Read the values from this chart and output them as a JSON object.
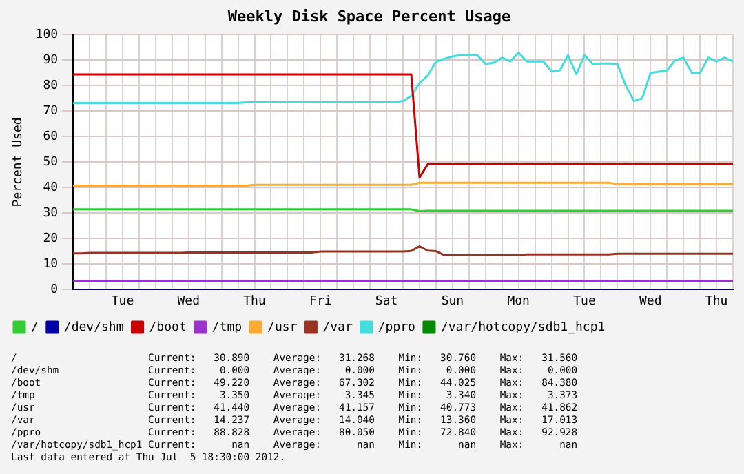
{
  "chart_data": {
    "type": "line",
    "title": "Weekly Disk Space Percent Usage",
    "ylabel": "Percent Used",
    "categories": [
      null,
      null,
      null,
      null,
      null,
      null,
      "Tue",
      null,
      null,
      null,
      null,
      null,
      null,
      null,
      "Wed",
      null,
      null,
      null,
      null,
      null,
      null,
      null,
      "Thu",
      null,
      null,
      null,
      null,
      null,
      null,
      null,
      "Fri",
      null,
      null,
      null,
      null,
      null,
      null,
      null,
      "Sat",
      null,
      null,
      null,
      null,
      null,
      null,
      null,
      "Sun",
      null,
      null,
      null,
      null,
      null,
      null,
      null,
      "Mon",
      null,
      null,
      null,
      null,
      null,
      null,
      null,
      "Tue",
      null,
      null,
      null,
      null,
      null,
      null,
      null,
      "Wed",
      null,
      null,
      null,
      null,
      null,
      null,
      null,
      "Thu",
      null,
      null
    ],
    "ylim": [
      0,
      100
    ],
    "yticks": [
      0,
      10,
      20,
      30,
      40,
      50,
      60,
      70,
      80,
      90,
      100
    ],
    "grid": true,
    "legend": "bottom",
    "marker": "none",
    "line_style": "solid",
    "series": [
      {
        "name": "/",
        "color": "#33cc33",
        "values": [
          31.5,
          31.5,
          31.5,
          31.5,
          31.5,
          31.5,
          31.5,
          31.5,
          31.5,
          31.5,
          31.5,
          31.5,
          31.5,
          31.5,
          31.5,
          31.5,
          31.5,
          31.5,
          31.5,
          31.5,
          31.5,
          31.5,
          31.5,
          31.5,
          31.5,
          31.5,
          31.5,
          31.5,
          31.5,
          31.5,
          31.5,
          31.5,
          31.5,
          31.5,
          31.5,
          31.5,
          31.5,
          31.5,
          31.5,
          31.5,
          31.5,
          31.5,
          30.8,
          30.9,
          30.9,
          30.9,
          30.9,
          30.9,
          30.9,
          30.9,
          30.9,
          30.9,
          30.9,
          30.9,
          30.9,
          30.9,
          30.9,
          30.9,
          30.9,
          30.9,
          30.9,
          30.9,
          30.9,
          30.9,
          30.9,
          30.9,
          30.9,
          30.9,
          30.9,
          30.9,
          30.9,
          30.9,
          30.9,
          30.9,
          30.9,
          30.9,
          30.9,
          30.9,
          30.9,
          30.9,
          30.9
        ]
      },
      {
        "name": "/dev/shm",
        "color": "#0000aa",
        "values": [
          0,
          0,
          0,
          0,
          0,
          0,
          0,
          0,
          0,
          0,
          0,
          0,
          0,
          0,
          0,
          0,
          0,
          0,
          0,
          0,
          0,
          0,
          0,
          0,
          0,
          0,
          0,
          0,
          0,
          0,
          0,
          0,
          0,
          0,
          0,
          0,
          0,
          0,
          0,
          0,
          0,
          0,
          0,
          0,
          0,
          0,
          0,
          0,
          0,
          0,
          0,
          0,
          0,
          0,
          0,
          0,
          0,
          0,
          0,
          0,
          0,
          0,
          0,
          0,
          0,
          0,
          0,
          0,
          0,
          0,
          0,
          0,
          0,
          0,
          0,
          0,
          0,
          0,
          0,
          0,
          0
        ]
      },
      {
        "name": "/boot",
        "color": "#cc0000",
        "values": [
          84.4,
          84.4,
          84.4,
          84.4,
          84.4,
          84.4,
          84.4,
          84.4,
          84.4,
          84.4,
          84.4,
          84.4,
          84.4,
          84.4,
          84.4,
          84.4,
          84.4,
          84.4,
          84.4,
          84.4,
          84.4,
          84.4,
          84.4,
          84.4,
          84.4,
          84.4,
          84.4,
          84.4,
          84.4,
          84.4,
          84.4,
          84.4,
          84.4,
          84.4,
          84.4,
          84.4,
          84.4,
          84.4,
          84.4,
          84.4,
          84.4,
          84.4,
          44,
          49.2,
          49.2,
          49.2,
          49.2,
          49.2,
          49.2,
          49.2,
          49.2,
          49.2,
          49.2,
          49.2,
          49.2,
          49.2,
          49.2,
          49.2,
          49.2,
          49.2,
          49.2,
          49.2,
          49.2,
          49.2,
          49.2,
          49.2,
          49.2,
          49.2,
          49.2,
          49.2,
          49.2,
          49.2,
          49.2,
          49.2,
          49.2,
          49.2,
          49.2,
          49.2,
          49.2,
          49.2,
          49.2
        ]
      },
      {
        "name": "/tmp",
        "color": "#9933cc",
        "values": [
          3.4,
          3.4,
          3.4,
          3.4,
          3.4,
          3.4,
          3.4,
          3.4,
          3.4,
          3.4,
          3.4,
          3.4,
          3.4,
          3.4,
          3.4,
          3.4,
          3.4,
          3.4,
          3.4,
          3.4,
          3.4,
          3.4,
          3.4,
          3.4,
          3.4,
          3.4,
          3.4,
          3.4,
          3.4,
          3.4,
          3.4,
          3.4,
          3.4,
          3.4,
          3.4,
          3.4,
          3.4,
          3.4,
          3.4,
          3.4,
          3.4,
          3.4,
          3.4,
          3.4,
          3.4,
          3.4,
          3.4,
          3.4,
          3.4,
          3.4,
          3.4,
          3.4,
          3.4,
          3.4,
          3.4,
          3.4,
          3.4,
          3.4,
          3.4,
          3.4,
          3.4,
          3.4,
          3.4,
          3.4,
          3.4,
          3.4,
          3.4,
          3.4,
          3.4,
          3.4,
          3.4,
          3.4,
          3.4,
          3.4,
          3.4,
          3.4,
          3.4,
          3.4,
          3.4,
          3.4,
          3.4
        ]
      },
      {
        "name": "/usr",
        "color": "#ffaa33",
        "values": [
          40.8,
          40.8,
          40.8,
          40.8,
          40.8,
          40.8,
          40.8,
          40.8,
          40.8,
          40.8,
          40.8,
          40.8,
          40.8,
          40.8,
          40.8,
          40.8,
          40.8,
          40.8,
          40.8,
          40.8,
          40.8,
          40.8,
          41.1,
          41.1,
          41.1,
          41.1,
          41.1,
          41.1,
          41.1,
          41.1,
          41.1,
          41.1,
          41.1,
          41.1,
          41.1,
          41.1,
          41.1,
          41.1,
          41.1,
          41.1,
          41.1,
          41.1,
          41.9,
          41.9,
          41.9,
          41.9,
          41.9,
          41.9,
          41.9,
          41.9,
          41.9,
          41.9,
          41.9,
          41.9,
          41.9,
          41.9,
          41.9,
          41.9,
          41.9,
          41.9,
          41.9,
          41.9,
          41.9,
          41.9,
          41.9,
          41.9,
          41.4,
          41.4,
          41.4,
          41.4,
          41.4,
          41.4,
          41.4,
          41.4,
          41.4,
          41.4,
          41.4,
          41.4,
          41.4,
          41.4,
          41.4
        ]
      },
      {
        "name": "/var",
        "color": "#993322",
        "values": [
          14.2,
          14.2,
          14.4,
          14.4,
          14.4,
          14.4,
          14.4,
          14.4,
          14.4,
          14.4,
          14.4,
          14.4,
          14.4,
          14.4,
          14.6,
          14.6,
          14.6,
          14.6,
          14.6,
          14.6,
          14.6,
          14.6,
          14.6,
          14.6,
          14.6,
          14.6,
          14.6,
          14.6,
          14.6,
          14.6,
          15,
          15,
          15,
          15,
          15,
          15,
          15,
          15,
          15,
          15,
          15,
          15.2,
          17,
          15.3,
          15.1,
          13.5,
          13.5,
          13.5,
          13.5,
          13.5,
          13.5,
          13.5,
          13.5,
          13.5,
          13.5,
          13.8,
          13.8,
          13.8,
          13.8,
          13.8,
          13.8,
          13.8,
          13.8,
          13.8,
          13.8,
          13.8,
          14.1,
          14.1,
          14.1,
          14.1,
          14.1,
          14.1,
          14.1,
          14.1,
          14.1,
          14.1,
          14.1,
          14.1,
          14.1,
          14.1,
          14.1
        ]
      },
      {
        "name": "/ppro",
        "color": "#44dddd",
        "values": [
          73.2,
          73.2,
          73.2,
          73.2,
          73.2,
          73.2,
          73.2,
          73.2,
          73.2,
          73.2,
          73.2,
          73.2,
          73.2,
          73.2,
          73.2,
          73.2,
          73.2,
          73.2,
          73.2,
          73.2,
          73.2,
          73.5,
          73.5,
          73.5,
          73.5,
          73.5,
          73.5,
          73.5,
          73.5,
          73.5,
          73.5,
          73.5,
          73.5,
          73.5,
          73.5,
          73.5,
          73.5,
          73.5,
          73.5,
          73.5,
          74,
          76,
          81,
          84,
          89.5,
          90.5,
          91.5,
          92,
          92,
          92,
          88.5,
          89,
          91,
          89.5,
          93,
          89.5,
          89.5,
          89.5,
          85.7,
          86,
          92,
          84.5,
          92,
          88.5,
          88.7,
          88.7,
          88.5,
          80,
          74,
          75,
          85,
          85.5,
          86,
          90,
          91,
          85,
          85,
          91,
          89.5,
          91,
          89.5
        ]
      },
      {
        "name": "/var/hotcopy/sdb1_hcp1",
        "color": "#008800",
        "values": [
          null,
          null,
          null,
          null,
          null,
          null,
          null,
          null,
          null,
          null,
          null,
          null,
          null,
          null,
          null,
          null,
          null,
          null,
          null,
          null,
          null,
          null,
          null,
          null,
          null,
          null,
          null,
          null,
          null,
          null,
          null,
          null,
          null,
          null,
          null,
          null,
          null,
          null,
          null,
          null,
          null,
          null,
          null,
          null,
          null,
          null,
          null,
          null,
          null,
          null,
          null,
          null,
          null,
          null,
          null,
          null,
          null,
          null,
          null,
          null,
          null,
          null,
          null,
          null,
          null,
          null,
          null,
          null,
          null,
          null,
          null,
          null,
          null,
          null,
          null,
          null,
          null,
          null,
          null,
          null,
          null
        ]
      }
    ],
    "annotations": [
      "/                      Current:   30.890    Average:   31.268    Min:   30.760    Max:   31.560",
      "/dev/shm               Current:    0.000    Average:    0.000    Min:    0.000    Max:    0.000",
      "/boot                  Current:   49.220    Average:   67.302    Min:   44.025    Max:   84.380",
      "/tmp                   Current:    3.350    Average:    3.345    Min:    3.340    Max:    3.373",
      "/usr                   Current:   41.440    Average:   41.157    Min:   40.773    Max:   41.862",
      "/var                   Current:   14.237    Average:   14.040    Min:   13.360    Max:   17.013",
      "/ppro                  Current:   88.828    Average:   80.050    Min:   72.840    Max:   92.928",
      "/var/hotcopy/sdb1_hcp1 Current:      nan    Average:      nan    Min:      nan    Max:      nan",
      "Last data entered at Thu Jul  5 18:30:00 2012."
    ]
  }
}
